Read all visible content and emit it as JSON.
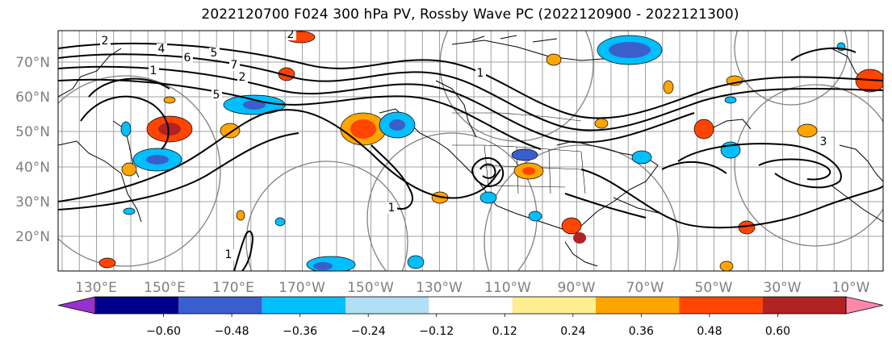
{
  "title": "2022120700 F024 300 hPa PV, Rossby Wave PC (2022120900 - 2022121300)",
  "map": {
    "lat_labels": [
      "70°N",
      "60°N",
      "50°N",
      "40°N",
      "30°N",
      "20°N"
    ],
    "lon_labels": [
      "130°E",
      "150°E",
      "170°E",
      "170°W",
      "150°W",
      "130°W",
      "110°W",
      "90°W",
      "70°W",
      "50°W",
      "30°W",
      "10°W"
    ],
    "contour_labels": [
      "2",
      "4",
      "5",
      "6",
      "7",
      "1",
      "2",
      "3",
      "1",
      "2",
      "5",
      "3",
      "1",
      "1"
    ]
  },
  "colorbar": {
    "ticks": [
      "−0.60",
      "−0.48",
      "−0.36",
      "−0.24",
      "−0.12",
      "0.12",
      "0.24",
      "0.36",
      "0.48",
      "0.60"
    ],
    "colors": [
      "#9932cc",
      "#00008b",
      "#3a5fcd",
      "#00bfff",
      "#b0e0f6",
      "#ffffff",
      "#ffee90",
      "#ffa500",
      "#ff4500",
      "#b22222",
      "#ff88aa"
    ],
    "extend": "both"
  },
  "style": {
    "grid_color": "#a0a0a0",
    "contour_color": "#000000",
    "circle_color": "#808080"
  }
}
